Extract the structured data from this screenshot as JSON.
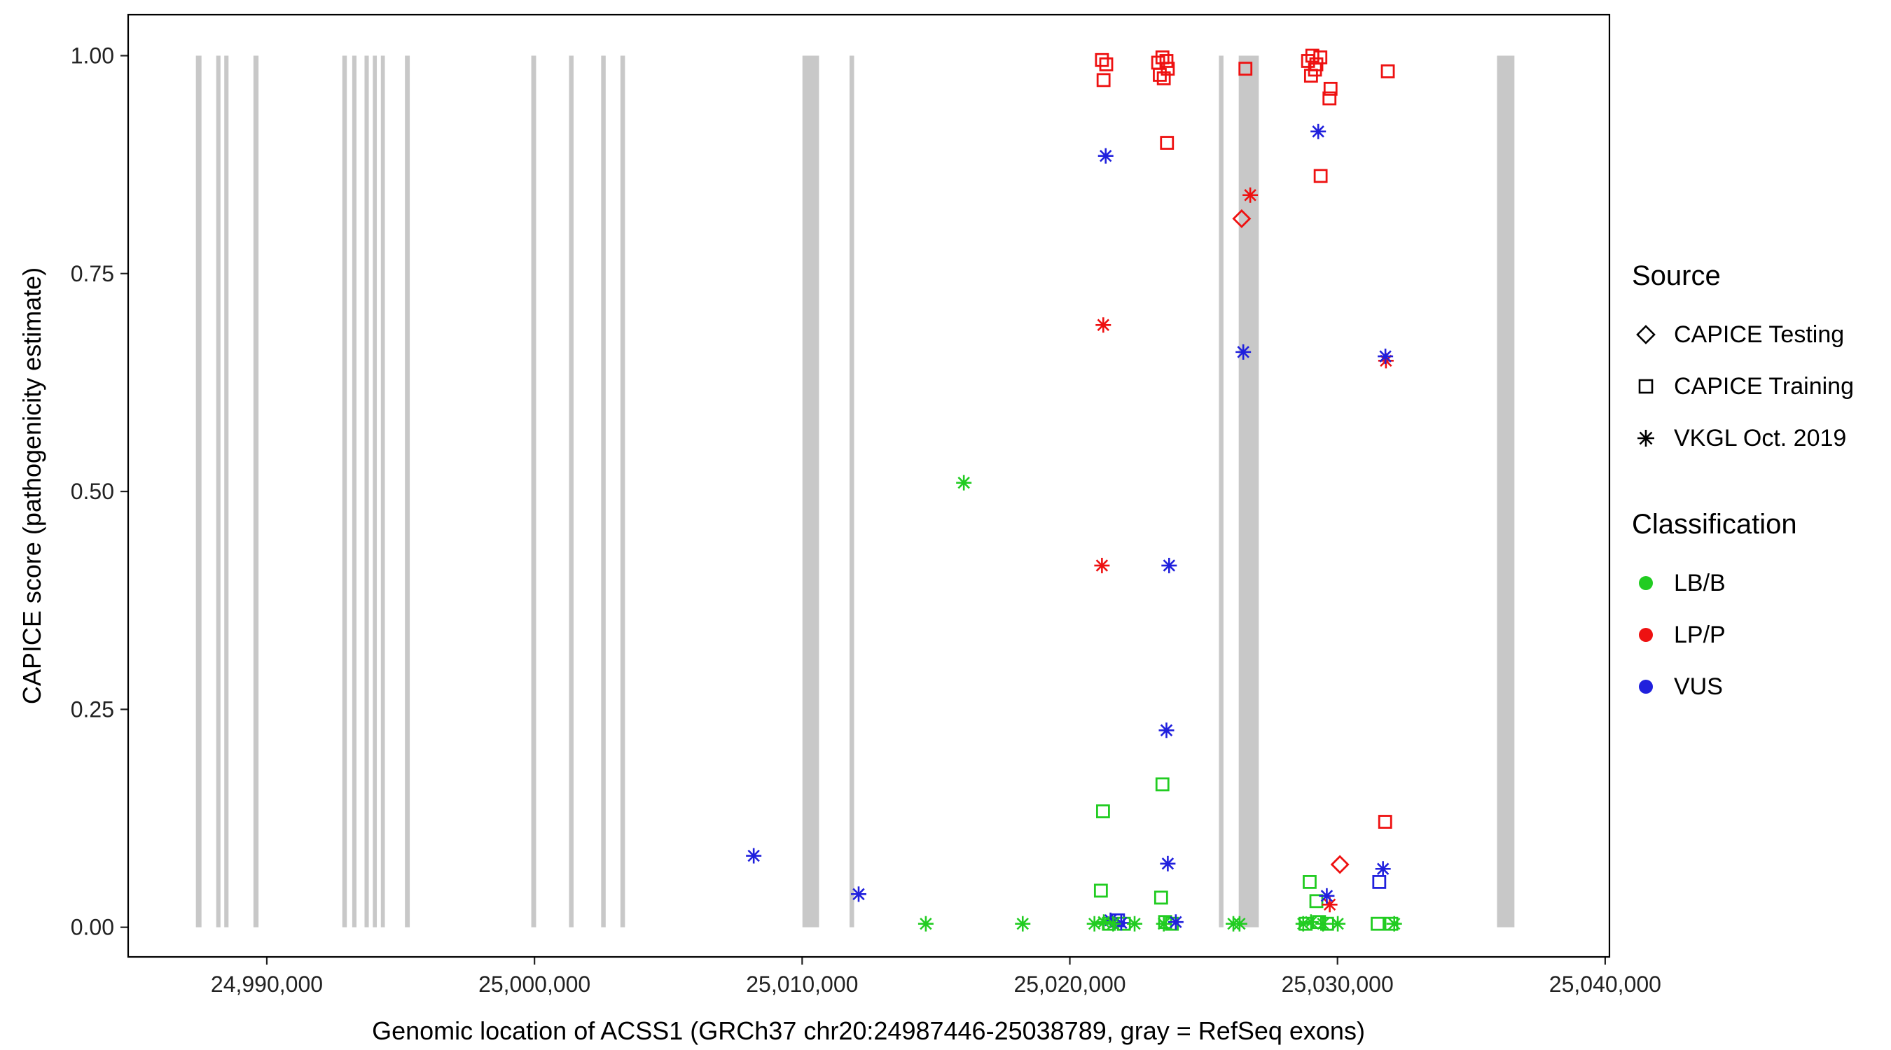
{
  "chart_data": {
    "type": "scatter",
    "title": "",
    "xlabel": "Genomic location of ACSS1 (GRCh37 chr20:24987446-25038789, gray = RefSeq exons)",
    "ylabel": "CAPICE score (pathogenicity estimate)",
    "xlim": [
      24984820,
      25040160
    ],
    "ylim": [
      -0.034,
      1.047
    ],
    "grid": false,
    "exon_color": "#c8c8c8",
    "panel_border_color": "#000000",
    "x_ticks": [
      {
        "value": 24990000,
        "label": "24,990,000"
      },
      {
        "value": 25000000,
        "label": "25,000,000"
      },
      {
        "value": 25010000,
        "label": "25,010,000"
      },
      {
        "value": 25020000,
        "label": "25,020,000"
      },
      {
        "value": 25030000,
        "label": "25,030,000"
      },
      {
        "value": 25040000,
        "label": "25,040,000"
      }
    ],
    "y_ticks": [
      {
        "value": 0.0,
        "label": "0.00"
      },
      {
        "value": 0.25,
        "label": "0.25"
      },
      {
        "value": 0.5,
        "label": "0.50"
      },
      {
        "value": 0.75,
        "label": "0.75"
      },
      {
        "value": 1.0,
        "label": "1.00"
      }
    ],
    "colors": {
      "LB/B": "#21cc21",
      "LP/P": "#ee1111",
      "VUS": "#2020dd"
    },
    "legend": {
      "position": "right",
      "source_title": "Source",
      "source_items": [
        {
          "label": "CAPICE Testing",
          "shape": "diamond"
        },
        {
          "label": "CAPICE Training",
          "shape": "square"
        },
        {
          "label": "VKGL Oct. 2019",
          "shape": "asterisk"
        }
      ],
      "classification_title": "Classification",
      "classification_items": [
        {
          "label": "LB/B",
          "color": "#21cc21"
        },
        {
          "label": "LP/P",
          "color": "#ee1111"
        },
        {
          "label": "VUS",
          "color": "#2020dd"
        }
      ]
    },
    "exons": [
      [
        24987350,
        24987560
      ],
      [
        24988110,
        24988270
      ],
      [
        24988410,
        24988570
      ],
      [
        24989500,
        24989690
      ],
      [
        24992820,
        24992990
      ],
      [
        24993190,
        24993350
      ],
      [
        24993650,
        24993810
      ],
      [
        24993960,
        24994110
      ],
      [
        24994260,
        24994410
      ],
      [
        24995160,
        24995340
      ],
      [
        24999880,
        25000060
      ],
      [
        25001290,
        25001460
      ],
      [
        25002490,
        25002660
      ],
      [
        25003210,
        25003380
      ],
      [
        25010010,
        25010630
      ],
      [
        25011770,
        25011940
      ],
      [
        25025570,
        25025740
      ],
      [
        25026310,
        25027060
      ],
      [
        25035960,
        25036610
      ]
    ],
    "points": [
      {
        "x": 25021200,
        "y": 0.995,
        "shape": "square",
        "cls": "LP/P"
      },
      {
        "x": 25021360,
        "y": 0.99,
        "shape": "square",
        "cls": "LP/P"
      },
      {
        "x": 25021260,
        "y": 0.972,
        "shape": "square",
        "cls": "LP/P"
      },
      {
        "x": 25023300,
        "y": 0.992,
        "shape": "square",
        "cls": "LP/P"
      },
      {
        "x": 25023460,
        "y": 0.998,
        "shape": "square",
        "cls": "LP/P"
      },
      {
        "x": 25023610,
        "y": 0.994,
        "shape": "square",
        "cls": "LP/P"
      },
      {
        "x": 25023360,
        "y": 0.978,
        "shape": "square",
        "cls": "LP/P"
      },
      {
        "x": 25023510,
        "y": 0.974,
        "shape": "square",
        "cls": "LP/P"
      },
      {
        "x": 25023660,
        "y": 0.985,
        "shape": "square",
        "cls": "LP/P"
      },
      {
        "x": 25023630,
        "y": 0.9,
        "shape": "square",
        "cls": "LP/P"
      },
      {
        "x": 25026560,
        "y": 0.985,
        "shape": "square",
        "cls": "LP/P"
      },
      {
        "x": 25028900,
        "y": 0.994,
        "shape": "square",
        "cls": "LP/P"
      },
      {
        "x": 25029060,
        "y": 1.0,
        "shape": "square",
        "cls": "LP/P"
      },
      {
        "x": 25029210,
        "y": 0.99,
        "shape": "square",
        "cls": "LP/P"
      },
      {
        "x": 25029360,
        "y": 0.998,
        "shape": "square",
        "cls": "LP/P"
      },
      {
        "x": 25029160,
        "y": 0.984,
        "shape": "square",
        "cls": "LP/P"
      },
      {
        "x": 25029010,
        "y": 0.977,
        "shape": "square",
        "cls": "LP/P"
      },
      {
        "x": 25029740,
        "y": 0.962,
        "shape": "square",
        "cls": "LP/P"
      },
      {
        "x": 25029700,
        "y": 0.951,
        "shape": "square",
        "cls": "LP/P"
      },
      {
        "x": 25029370,
        "y": 0.862,
        "shape": "square",
        "cls": "LP/P"
      },
      {
        "x": 25031880,
        "y": 0.982,
        "shape": "square",
        "cls": "LP/P"
      },
      {
        "x": 25031780,
        "y": 0.121,
        "shape": "square",
        "cls": "LP/P"
      },
      {
        "x": 25031560,
        "y": 0.052,
        "shape": "square",
        "cls": "VUS"
      },
      {
        "x": 25021800,
        "y": 0.008,
        "shape": "square",
        "cls": "VUS"
      },
      {
        "x": 25021240,
        "y": 0.133,
        "shape": "square",
        "cls": "LB/B"
      },
      {
        "x": 25023460,
        "y": 0.164,
        "shape": "square",
        "cls": "LB/B"
      },
      {
        "x": 25021160,
        "y": 0.042,
        "shape": "square",
        "cls": "LB/B"
      },
      {
        "x": 25023410,
        "y": 0.034,
        "shape": "square",
        "cls": "LB/B"
      },
      {
        "x": 25028960,
        "y": 0.052,
        "shape": "square",
        "cls": "LB/B"
      },
      {
        "x": 25029210,
        "y": 0.03,
        "shape": "square",
        "cls": "LB/B"
      },
      {
        "x": 25021460,
        "y": 0.004,
        "shape": "square",
        "cls": "LB/B"
      },
      {
        "x": 25022020,
        "y": 0.004,
        "shape": "square",
        "cls": "LB/B"
      },
      {
        "x": 25023560,
        "y": 0.006,
        "shape": "square",
        "cls": "LB/B"
      },
      {
        "x": 25023810,
        "y": 0.004,
        "shape": "square",
        "cls": "LB/B"
      },
      {
        "x": 25028810,
        "y": 0.004,
        "shape": "square",
        "cls": "LB/B"
      },
      {
        "x": 25029310,
        "y": 0.006,
        "shape": "square",
        "cls": "LB/B"
      },
      {
        "x": 25029610,
        "y": 0.004,
        "shape": "square",
        "cls": "LB/B"
      },
      {
        "x": 25031500,
        "y": 0.004,
        "shape": "square",
        "cls": "LB/B"
      },
      {
        "x": 25032010,
        "y": 0.004,
        "shape": "square",
        "cls": "LB/B"
      },
      {
        "x": 25026420,
        "y": 0.813,
        "shape": "diamond",
        "cls": "LP/P"
      },
      {
        "x": 25030090,
        "y": 0.072,
        "shape": "diamond",
        "cls": "LP/P"
      },
      {
        "x": 25021250,
        "y": 0.691,
        "shape": "asterisk",
        "cls": "LP/P"
      },
      {
        "x": 25021200,
        "y": 0.415,
        "shape": "asterisk",
        "cls": "LP/P"
      },
      {
        "x": 25026740,
        "y": 0.84,
        "shape": "asterisk",
        "cls": "LP/P"
      },
      {
        "x": 25031810,
        "y": 0.65,
        "shape": "asterisk",
        "cls": "LP/P"
      },
      {
        "x": 25029710,
        "y": 0.026,
        "shape": "asterisk",
        "cls": "LP/P"
      },
      {
        "x": 25021340,
        "y": 0.885,
        "shape": "asterisk",
        "cls": "VUS"
      },
      {
        "x": 25029280,
        "y": 0.913,
        "shape": "asterisk",
        "cls": "VUS"
      },
      {
        "x": 25026480,
        "y": 0.66,
        "shape": "asterisk",
        "cls": "VUS"
      },
      {
        "x": 25031790,
        "y": 0.655,
        "shape": "asterisk",
        "cls": "VUS"
      },
      {
        "x": 25023710,
        "y": 0.415,
        "shape": "asterisk",
        "cls": "VUS"
      },
      {
        "x": 25023610,
        "y": 0.226,
        "shape": "asterisk",
        "cls": "VUS"
      },
      {
        "x": 25023660,
        "y": 0.073,
        "shape": "asterisk",
        "cls": "VUS"
      },
      {
        "x": 25008190,
        "y": 0.082,
        "shape": "asterisk",
        "cls": "VUS"
      },
      {
        "x": 25012110,
        "y": 0.038,
        "shape": "asterisk",
        "cls": "VUS"
      },
      {
        "x": 25029600,
        "y": 0.036,
        "shape": "asterisk",
        "cls": "VUS"
      },
      {
        "x": 25031700,
        "y": 0.067,
        "shape": "asterisk",
        "cls": "VUS"
      },
      {
        "x": 25021520,
        "y": 0.008,
        "shape": "asterisk",
        "cls": "VUS"
      },
      {
        "x": 25021920,
        "y": 0.005,
        "shape": "asterisk",
        "cls": "VUS"
      },
      {
        "x": 25023960,
        "y": 0.006,
        "shape": "asterisk",
        "cls": "VUS"
      },
      {
        "x": 25016040,
        "y": 0.51,
        "shape": "asterisk",
        "cls": "LB/B"
      },
      {
        "x": 25014620,
        "y": 0.004,
        "shape": "asterisk",
        "cls": "LB/B"
      },
      {
        "x": 25018240,
        "y": 0.004,
        "shape": "asterisk",
        "cls": "LB/B"
      },
      {
        "x": 25020920,
        "y": 0.004,
        "shape": "asterisk",
        "cls": "LB/B"
      },
      {
        "x": 25021270,
        "y": 0.006,
        "shape": "asterisk",
        "cls": "LB/B"
      },
      {
        "x": 25021620,
        "y": 0.004,
        "shape": "asterisk",
        "cls": "LB/B"
      },
      {
        "x": 25022420,
        "y": 0.004,
        "shape": "asterisk",
        "cls": "LB/B"
      },
      {
        "x": 25023510,
        "y": 0.004,
        "shape": "asterisk",
        "cls": "LB/B"
      },
      {
        "x": 25026110,
        "y": 0.004,
        "shape": "asterisk",
        "cls": "LB/B"
      },
      {
        "x": 25026340,
        "y": 0.004,
        "shape": "asterisk",
        "cls": "LB/B"
      },
      {
        "x": 25028720,
        "y": 0.004,
        "shape": "asterisk",
        "cls": "LB/B"
      },
      {
        "x": 25029010,
        "y": 0.006,
        "shape": "asterisk",
        "cls": "LB/B"
      },
      {
        "x": 25029460,
        "y": 0.004,
        "shape": "asterisk",
        "cls": "LB/B"
      },
      {
        "x": 25030010,
        "y": 0.004,
        "shape": "asterisk",
        "cls": "LB/B"
      },
      {
        "x": 25032120,
        "y": 0.004,
        "shape": "asterisk",
        "cls": "LB/B"
      }
    ]
  }
}
